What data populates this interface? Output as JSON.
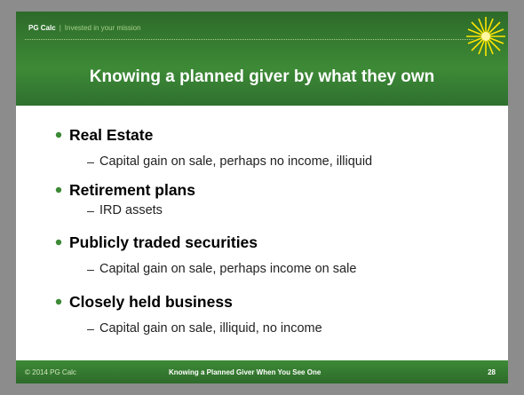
{
  "header": {
    "brand": "PG Calc",
    "separator": "|",
    "tagline": "Invested in your mission"
  },
  "title": "Knowing a planned giver by what they own",
  "bullets": [
    {
      "text": "Real Estate",
      "sub": "Capital gain on sale, perhaps no income, illiquid"
    },
    {
      "text": "Retirement plans",
      "sub": "IRD assets"
    },
    {
      "text": "Publicly traded securities",
      "sub": "Capital gain on sale, perhaps income on sale"
    },
    {
      "text": "Closely held business",
      "sub": "Capital gain on sale, illiquid, no income"
    }
  ],
  "footer": {
    "left": "© 2014 PG Calc",
    "center": "Knowing a Planned Giver When You See One",
    "page": "28"
  }
}
